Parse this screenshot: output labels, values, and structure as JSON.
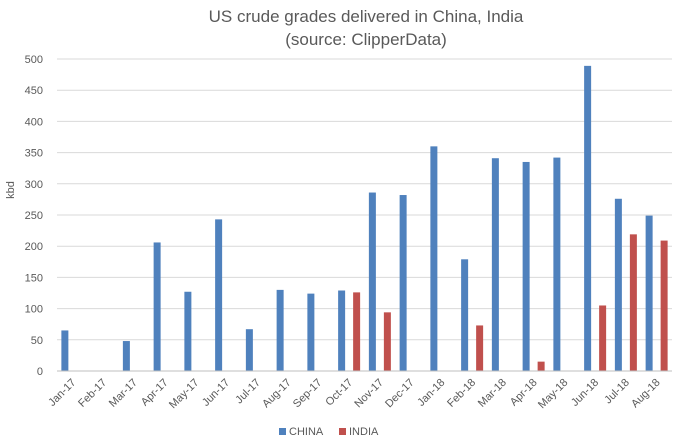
{
  "chart_data": {
    "type": "bar",
    "title": "US crude grades delivered in China, India",
    "subtitle": "(source: ClipperData)",
    "xlabel": "",
    "ylabel": "kbd",
    "ylim": [
      0,
      500
    ],
    "yticks": [
      0,
      50,
      100,
      150,
      200,
      250,
      300,
      350,
      400,
      450,
      500
    ],
    "grid": true,
    "legend_position": "bottom-center",
    "categories": [
      "Jan-17",
      "Feb-17",
      "Mar-17",
      "Apr-17",
      "May-17",
      "Jun-17",
      "Jul-17",
      "Aug-17",
      "Sep-17",
      "Oct-17",
      "Nov-17",
      "Dec-17",
      "Jan-18",
      "Feb-18",
      "Mar-18",
      "Apr-18",
      "May-18",
      "Jun-18",
      "Jul-18",
      "Aug-18"
    ],
    "series": [
      {
        "name": "CHINA",
        "color": "#4f81bd",
        "values": [
          65,
          0,
          48,
          206,
          127,
          243,
          67,
          130,
          124,
          129,
          286,
          282,
          360,
          179,
          341,
          335,
          342,
          489,
          276,
          249
        ]
      },
      {
        "name": "INDIA",
        "color": "#c0504d",
        "values": [
          0,
          0,
          0,
          0,
          0,
          0,
          0,
          0,
          0,
          126,
          94,
          0,
          0,
          73,
          0,
          15,
          0,
          105,
          219,
          209
        ]
      }
    ]
  }
}
